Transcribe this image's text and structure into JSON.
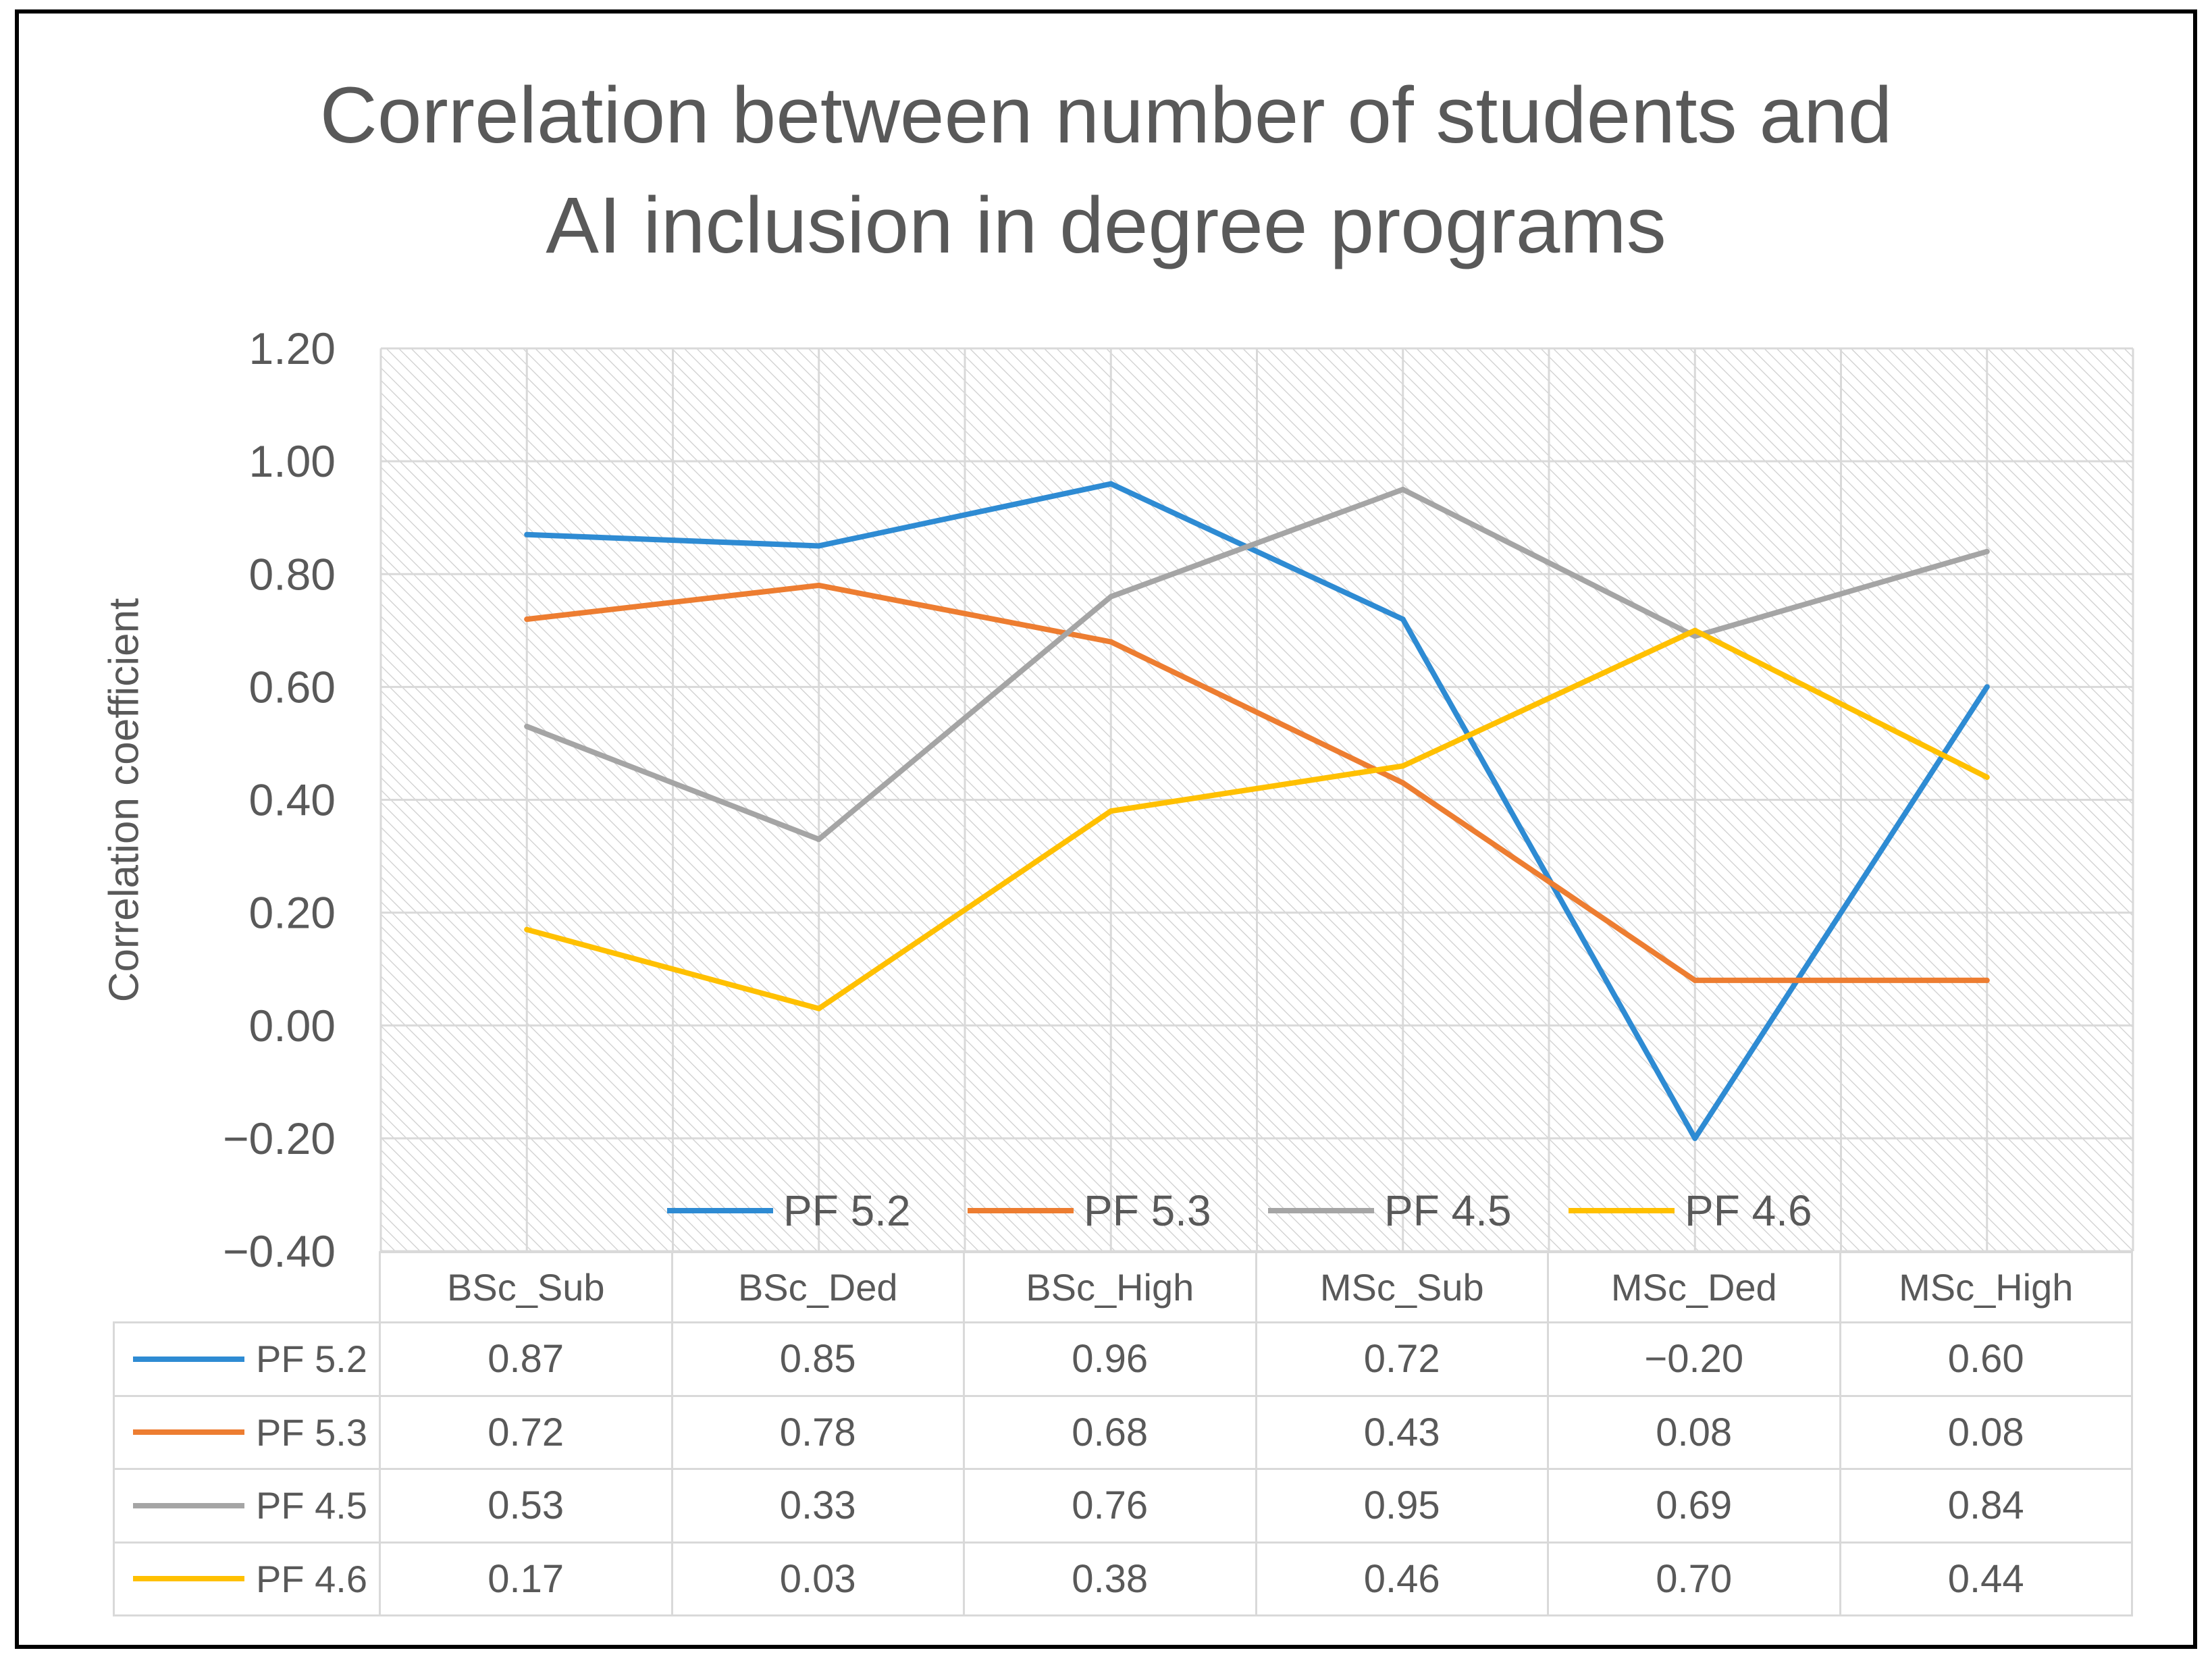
{
  "chart_data": {
    "type": "line",
    "title": "Correlation between number of students and\nAI inclusion in degree programs",
    "xlabel": "",
    "ylabel": "Correlation coefficient",
    "ylim": [
      -0.4,
      1.2
    ],
    "yticks": [
      1.2,
      1.0,
      0.8,
      0.6,
      0.4,
      0.2,
      0.0,
      -0.2,
      -0.4
    ],
    "ytick_labels": [
      "1.20",
      "1.00",
      "0.80",
      "0.60",
      "0.40",
      "0.20",
      "0.00",
      "−0.20",
      "−0.40"
    ],
    "categories": [
      "BSc_Sub",
      "BSc_Ded",
      "BSc_High",
      "MSc_Sub",
      "MSc_Ded",
      "MSc_High"
    ],
    "series": [
      {
        "name": "PF 5.2",
        "color": "#2E8BD3",
        "values": [
          0.87,
          0.85,
          0.96,
          0.72,
          -0.2,
          0.6
        ],
        "value_labels": [
          "0.87",
          "0.85",
          "0.96",
          "0.72",
          "−0.20",
          "0.60"
        ]
      },
      {
        "name": "PF 5.3",
        "color": "#ED7D31",
        "values": [
          0.72,
          0.78,
          0.68,
          0.43,
          0.08,
          0.08
        ],
        "value_labels": [
          "0.72",
          "0.78",
          "0.68",
          "0.43",
          "0.08",
          "0.08"
        ]
      },
      {
        "name": "PF 4.5",
        "color": "#A5A5A5",
        "values": [
          0.53,
          0.33,
          0.76,
          0.95,
          0.69,
          0.84
        ],
        "value_labels": [
          "0.53",
          "0.33",
          "0.76",
          "0.95",
          "0.69",
          "0.84"
        ]
      },
      {
        "name": "PF 4.6",
        "color": "#FFC000",
        "values": [
          0.17,
          0.03,
          0.38,
          0.46,
          0.7,
          0.44
        ],
        "value_labels": [
          "0.17",
          "0.03",
          "0.38",
          "0.46",
          "0.70",
          "0.44"
        ]
      }
    ],
    "grid": true,
    "data_table": true,
    "colors": {
      "text": "#595959",
      "grid": "#D9D9D9",
      "hatch": "#CDCDCD",
      "frame": "#000000"
    }
  }
}
